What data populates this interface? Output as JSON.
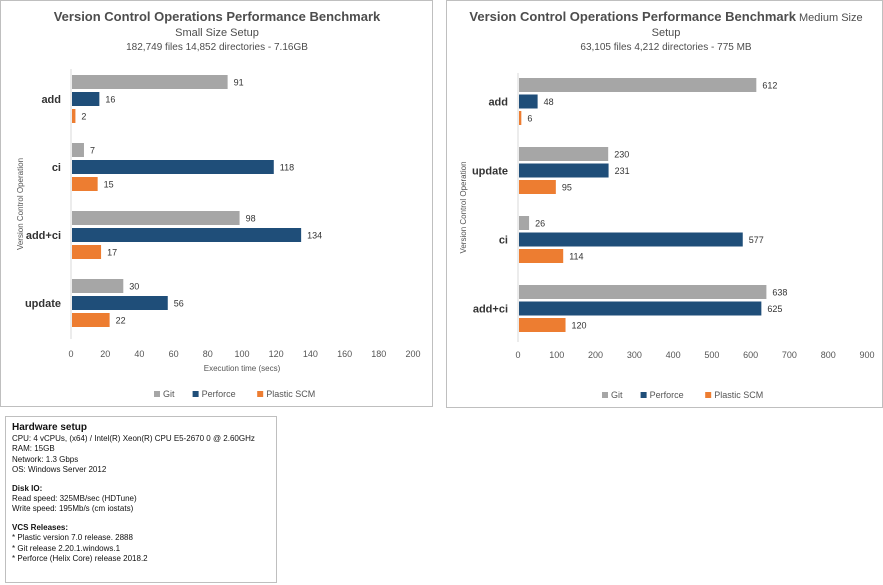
{
  "colors": {
    "git": "#a6a6a6",
    "perforce": "#1f4e79",
    "plastic": "#ed7d31"
  },
  "chart_data": [
    {
      "type": "bar",
      "orientation": "horizontal",
      "title": "Version Control Operations Performance Benchmark",
      "subtitle": "Small Size Setup",
      "subtitle2": "182,749 files 14,852 directories - 7.16GB",
      "xlabel": "Execution time (secs)",
      "ylabel": "Version Control Operation",
      "xlim": [
        0,
        200
      ],
      "xticks": [
        "0",
        "20",
        "40",
        "60",
        "80",
        "100",
        "120",
        "140",
        "160",
        "180",
        "200"
      ],
      "categories": [
        "add",
        "ci",
        "add+ci",
        "update"
      ],
      "series": [
        {
          "name": "Git",
          "values": [
            91,
            7,
            98,
            30
          ]
        },
        {
          "name": "Perforce",
          "values": [
            16,
            118,
            134,
            56
          ]
        },
        {
          "name": "Plastic SCM",
          "values": [
            2,
            15,
            17,
            22
          ]
        }
      ],
      "grid": false,
      "legend": "bottom"
    },
    {
      "type": "bar",
      "orientation": "horizontal",
      "title": "Version Control Operations Performance Benchmark",
      "title_suffix": "Medium Size",
      "subtitle": "Setup",
      "subtitle2": "63,105 files 4,212 directories - 775 MB",
      "xlabel": "",
      "ylabel": "Version Control Operation",
      "xlim": [
        0,
        900
      ],
      "xticks": [
        "0",
        "100",
        "200",
        "300",
        "400",
        "500",
        "600",
        "700",
        "800",
        "900"
      ],
      "categories": [
        "add",
        "update",
        "ci",
        "add+ci"
      ],
      "series": [
        {
          "name": "Git",
          "values": [
            612,
            230,
            26,
            638
          ]
        },
        {
          "name": "Perforce",
          "values": [
            48,
            231,
            577,
            625
          ]
        },
        {
          "name": "Plastic SCM",
          "values": [
            6,
            95,
            114,
            120
          ]
        }
      ],
      "grid": false,
      "legend": "bottom"
    }
  ],
  "hardware": {
    "title": "Hardware setup",
    "lines": [
      "CPU: 4 vCPUs, (x64) / Intel(R) Xeon(R) CPU E5-2670 0 @ 2.60GHz",
      "RAM: 15GB",
      "Network: 1.3 Gbps",
      "OS: Windows Server 2012"
    ],
    "disk_title": "Disk IO:",
    "disk_lines": [
      "Read speed: 325MB/sec (HDTune)",
      "Write speed: 195Mb/s (cm iostats)"
    ],
    "vcs_title": "VCS Releases:",
    "vcs_lines": [
      "* Plastic version 7.0 release. 2888",
      "* Git release 2.20.1.windows.1",
      "* Perforce (Helix Core) release 2018.2"
    ]
  }
}
